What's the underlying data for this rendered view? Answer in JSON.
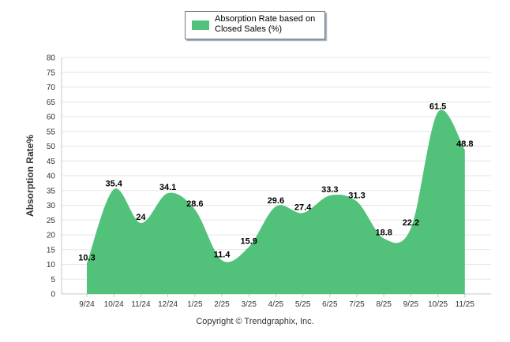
{
  "chart_data": {
    "type": "area",
    "title": "",
    "categories": [
      "9/24",
      "10/24",
      "11/24",
      "12/24",
      "1/25",
      "2/25",
      "3/25",
      "4/25",
      "5/25",
      "6/25",
      "7/25",
      "8/25",
      "9/25",
      "10/25",
      "11/25"
    ],
    "series": [
      {
        "name": "Absorption Rate based on Closed Sales (%)",
        "values": [
          10.3,
          35.4,
          24,
          34.1,
          28.6,
          11.4,
          15.9,
          29.6,
          27.4,
          33.3,
          31.3,
          18.8,
          22.2,
          61.5,
          48.8
        ],
        "labels": [
          "10.3",
          "35.4",
          "24",
          "34.1",
          "28.6",
          "11.4",
          "15.9",
          "29.6",
          "27.4",
          "33.3",
          "31.3",
          "18.8",
          "22.2",
          "61.5",
          "48.8"
        ]
      }
    ],
    "xlabel": "",
    "ylabel": "Absorption Rate%",
    "ylim": [
      0,
      80
    ],
    "yticks": [
      0,
      5,
      10,
      15,
      20,
      25,
      30,
      35,
      40,
      45,
      50,
      55,
      60,
      65,
      70,
      75,
      80
    ],
    "grid": true,
    "legend": "top-center",
    "fill_color": "#52c27a",
    "grid_color": "#e6e6e6"
  },
  "legend": {
    "label": "Absorption Rate based on Closed Sales (%)"
  },
  "footer": {
    "copyright": "Copyright © Trendgraphix, Inc."
  }
}
